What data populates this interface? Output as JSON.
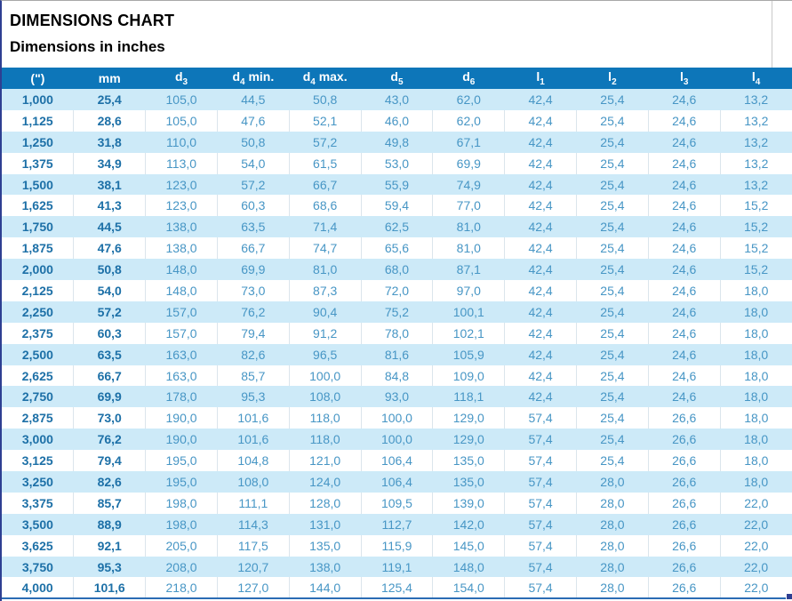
{
  "page": {
    "title": "DIMENSIONS CHART",
    "subtitle": "Dimensions in inches"
  },
  "colors": {
    "header_bg": "#0d76b9",
    "header_text": "#ffffff",
    "row_alt_bg": "#cdeaf8",
    "row_bg": "#ffffff",
    "text_bold": "#1d70a7",
    "text_regular": "#4796c5",
    "selection_border": "#2e3f92",
    "selection_bottom": "#2b6cb4"
  },
  "chart_data": {
    "type": "table",
    "title": "DIMENSIONS CHART",
    "subtitle": "Dimensions in inches",
    "columns": [
      {
        "base": "(\")",
        "sub": "",
        "suffix": ""
      },
      {
        "base": "mm",
        "sub": "",
        "suffix": ""
      },
      {
        "base": "d",
        "sub": "3",
        "suffix": ""
      },
      {
        "base": "d",
        "sub": "4",
        "suffix": " min."
      },
      {
        "base": "d",
        "sub": "4",
        "suffix": " max."
      },
      {
        "base": "d",
        "sub": "5",
        "suffix": ""
      },
      {
        "base": "d",
        "sub": "6",
        "suffix": ""
      },
      {
        "base": "l",
        "sub": "1",
        "suffix": ""
      },
      {
        "base": "l",
        "sub": "2",
        "suffix": ""
      },
      {
        "base": "l",
        "sub": "3",
        "suffix": ""
      },
      {
        "base": "l",
        "sub": "4",
        "suffix": ""
      }
    ],
    "rows": [
      [
        "1,000",
        "25,4",
        "105,0",
        "44,5",
        "50,8",
        "43,0",
        "62,0",
        "42,4",
        "25,4",
        "24,6",
        "13,2"
      ],
      [
        "1,125",
        "28,6",
        "105,0",
        "47,6",
        "52,1",
        "46,0",
        "62,0",
        "42,4",
        "25,4",
        "24,6",
        "13,2"
      ],
      [
        "1,250",
        "31,8",
        "110,0",
        "50,8",
        "57,2",
        "49,8",
        "67,1",
        "42,4",
        "25,4",
        "24,6",
        "13,2"
      ],
      [
        "1,375",
        "34,9",
        "113,0",
        "54,0",
        "61,5",
        "53,0",
        "69,9",
        "42,4",
        "25,4",
        "24,6",
        "13,2"
      ],
      [
        "1,500",
        "38,1",
        "123,0",
        "57,2",
        "66,7",
        "55,9",
        "74,9",
        "42,4",
        "25,4",
        "24,6",
        "13,2"
      ],
      [
        "1,625",
        "41,3",
        "123,0",
        "60,3",
        "68,6",
        "59,4",
        "77,0",
        "42,4",
        "25,4",
        "24,6",
        "15,2"
      ],
      [
        "1,750",
        "44,5",
        "138,0",
        "63,5",
        "71,4",
        "62,5",
        "81,0",
        "42,4",
        "25,4",
        "24,6",
        "15,2"
      ],
      [
        "1,875",
        "47,6",
        "138,0",
        "66,7",
        "74,7",
        "65,6",
        "81,0",
        "42,4",
        "25,4",
        "24,6",
        "15,2"
      ],
      [
        "2,000",
        "50,8",
        "148,0",
        "69,9",
        "81,0",
        "68,0",
        "87,1",
        "42,4",
        "25,4",
        "24,6",
        "15,2"
      ],
      [
        "2,125",
        "54,0",
        "148,0",
        "73,0",
        "87,3",
        "72,0",
        "97,0",
        "42,4",
        "25,4",
        "24,6",
        "18,0"
      ],
      [
        "2,250",
        "57,2",
        "157,0",
        "76,2",
        "90,4",
        "75,2",
        "100,1",
        "42,4",
        "25,4",
        "24,6",
        "18,0"
      ],
      [
        "2,375",
        "60,3",
        "157,0",
        "79,4",
        "91,2",
        "78,0",
        "102,1",
        "42,4",
        "25,4",
        "24,6",
        "18,0"
      ],
      [
        "2,500",
        "63,5",
        "163,0",
        "82,6",
        "96,5",
        "81,6",
        "105,9",
        "42,4",
        "25,4",
        "24,6",
        "18,0"
      ],
      [
        "2,625",
        "66,7",
        "163,0",
        "85,7",
        "100,0",
        "84,8",
        "109,0",
        "42,4",
        "25,4",
        "24,6",
        "18,0"
      ],
      [
        "2,750",
        "69,9",
        "178,0",
        "95,3",
        "108,0",
        "93,0",
        "118,1",
        "42,4",
        "25,4",
        "24,6",
        "18,0"
      ],
      [
        "2,875",
        "73,0",
        "190,0",
        "101,6",
        "118,0",
        "100,0",
        "129,0",
        "57,4",
        "25,4",
        "26,6",
        "18,0"
      ],
      [
        "3,000",
        "76,2",
        "190,0",
        "101,6",
        "118,0",
        "100,0",
        "129,0",
        "57,4",
        "25,4",
        "26,6",
        "18,0"
      ],
      [
        "3,125",
        "79,4",
        "195,0",
        "104,8",
        "121,0",
        "106,4",
        "135,0",
        "57,4",
        "25,4",
        "26,6",
        "18,0"
      ],
      [
        "3,250",
        "82,6",
        "195,0",
        "108,0",
        "124,0",
        "106,4",
        "135,0",
        "57,4",
        "28,0",
        "26,6",
        "18,0"
      ],
      [
        "3,375",
        "85,7",
        "198,0",
        "111,1",
        "128,0",
        "109,5",
        "139,0",
        "57,4",
        "28,0",
        "26,6",
        "22,0"
      ],
      [
        "3,500",
        "88,9",
        "198,0",
        "114,3",
        "131,0",
        "112,7",
        "142,0",
        "57,4",
        "28,0",
        "26,6",
        "22,0"
      ],
      [
        "3,625",
        "92,1",
        "205,0",
        "117,5",
        "135,0",
        "115,9",
        "145,0",
        "57,4",
        "28,0",
        "26,6",
        "22,0"
      ],
      [
        "3,750",
        "95,3",
        "208,0",
        "120,7",
        "138,0",
        "119,1",
        "148,0",
        "57,4",
        "28,0",
        "26,6",
        "22,0"
      ],
      [
        "4,000",
        "101,6",
        "218,0",
        "127,0",
        "144,0",
        "125,4",
        "154,0",
        "57,4",
        "28,0",
        "26,6",
        "22,0"
      ]
    ]
  }
}
